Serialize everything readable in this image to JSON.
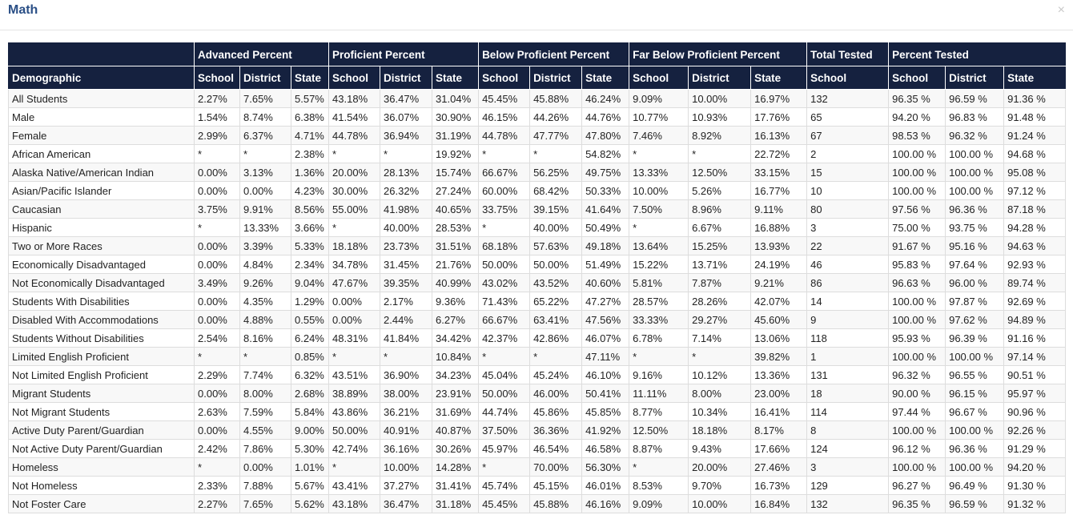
{
  "modal": {
    "title": "Math",
    "close_glyph": "×"
  },
  "table": {
    "group_headers": [
      "",
      "Advanced Percent",
      "Proficient Percent",
      "Below Proficient Percent",
      "Far Below Proficient Percent",
      "Total Tested",
      "Percent Tested"
    ],
    "columns": [
      "Demographic",
      "School",
      "District",
      "State",
      "School",
      "District",
      "State",
      "School",
      "District",
      "State",
      "School",
      "District",
      "State",
      "School",
      "School",
      "District",
      "State"
    ],
    "rows": [
      [
        "All Students",
        "2.27%",
        "7.65%",
        "5.57%",
        "43.18%",
        "36.47%",
        "31.04%",
        "45.45%",
        "45.88%",
        "46.24%",
        "9.09%",
        "10.00%",
        "16.97%",
        "132",
        "96.35 %",
        "96.59 %",
        "91.36 %"
      ],
      [
        "Male",
        "1.54%",
        "8.74%",
        "6.38%",
        "41.54%",
        "36.07%",
        "30.90%",
        "46.15%",
        "44.26%",
        "44.76%",
        "10.77%",
        "10.93%",
        "17.76%",
        "65",
        "94.20 %",
        "96.83 %",
        "91.48 %"
      ],
      [
        "Female",
        "2.99%",
        "6.37%",
        "4.71%",
        "44.78%",
        "36.94%",
        "31.19%",
        "44.78%",
        "47.77%",
        "47.80%",
        "7.46%",
        "8.92%",
        "16.13%",
        "67",
        "98.53 %",
        "96.32 %",
        "91.24 %"
      ],
      [
        "African American",
        "*",
        "*",
        "2.38%",
        "*",
        "*",
        "19.92%",
        "*",
        "*",
        "54.82%",
        "*",
        "*",
        "22.72%",
        "2",
        "100.00 %",
        "100.00 %",
        "94.68 %"
      ],
      [
        "Alaska Native/American Indian",
        "0.00%",
        "3.13%",
        "1.36%",
        "20.00%",
        "28.13%",
        "15.74%",
        "66.67%",
        "56.25%",
        "49.75%",
        "13.33%",
        "12.50%",
        "33.15%",
        "15",
        "100.00 %",
        "100.00 %",
        "95.08 %"
      ],
      [
        "Asian/Pacific Islander",
        "0.00%",
        "0.00%",
        "4.23%",
        "30.00%",
        "26.32%",
        "27.24%",
        "60.00%",
        "68.42%",
        "50.33%",
        "10.00%",
        "5.26%",
        "16.77%",
        "10",
        "100.00 %",
        "100.00 %",
        "97.12 %"
      ],
      [
        "Caucasian",
        "3.75%",
        "9.91%",
        "8.56%",
        "55.00%",
        "41.98%",
        "40.65%",
        "33.75%",
        "39.15%",
        "41.64%",
        "7.50%",
        "8.96%",
        "9.11%",
        "80",
        "97.56 %",
        "96.36 %",
        "87.18 %"
      ],
      [
        "Hispanic",
        "*",
        "13.33%",
        "3.66%",
        "*",
        "40.00%",
        "28.53%",
        "*",
        "40.00%",
        "50.49%",
        "*",
        "6.67%",
        "16.88%",
        "3",
        "75.00 %",
        "93.75 %",
        "94.28 %"
      ],
      [
        "Two or More Races",
        "0.00%",
        "3.39%",
        "5.33%",
        "18.18%",
        "23.73%",
        "31.51%",
        "68.18%",
        "57.63%",
        "49.18%",
        "13.64%",
        "15.25%",
        "13.93%",
        "22",
        "91.67 %",
        "95.16 %",
        "94.63 %"
      ],
      [
        "Economically Disadvantaged",
        "0.00%",
        "4.84%",
        "2.34%",
        "34.78%",
        "31.45%",
        "21.76%",
        "50.00%",
        "50.00%",
        "51.49%",
        "15.22%",
        "13.71%",
        "24.19%",
        "46",
        "95.83 %",
        "97.64 %",
        "92.93 %"
      ],
      [
        "Not Economically Disadvantaged",
        "3.49%",
        "9.26%",
        "9.04%",
        "47.67%",
        "39.35%",
        "40.99%",
        "43.02%",
        "43.52%",
        "40.60%",
        "5.81%",
        "7.87%",
        "9.21%",
        "86",
        "96.63 %",
        "96.00 %",
        "89.74 %"
      ],
      [
        "Students With Disabilities",
        "0.00%",
        "4.35%",
        "1.29%",
        "0.00%",
        "2.17%",
        "9.36%",
        "71.43%",
        "65.22%",
        "47.27%",
        "28.57%",
        "28.26%",
        "42.07%",
        "14",
        "100.00 %",
        "97.87 %",
        "92.69 %"
      ],
      [
        "Disabled With Accommodations",
        "0.00%",
        "4.88%",
        "0.55%",
        "0.00%",
        "2.44%",
        "6.27%",
        "66.67%",
        "63.41%",
        "47.56%",
        "33.33%",
        "29.27%",
        "45.60%",
        "9",
        "100.00 %",
        "97.62 %",
        "94.89 %"
      ],
      [
        "Students Without Disabilities",
        "2.54%",
        "8.16%",
        "6.24%",
        "48.31%",
        "41.84%",
        "34.42%",
        "42.37%",
        "42.86%",
        "46.07%",
        "6.78%",
        "7.14%",
        "13.06%",
        "118",
        "95.93 %",
        "96.39 %",
        "91.16 %"
      ],
      [
        "Limited English Proficient",
        "*",
        "*",
        "0.85%",
        "*",
        "*",
        "10.84%",
        "*",
        "*",
        "47.11%",
        "*",
        "*",
        "39.82%",
        "1",
        "100.00 %",
        "100.00 %",
        "97.14 %"
      ],
      [
        "Not Limited English Proficient",
        "2.29%",
        "7.74%",
        "6.32%",
        "43.51%",
        "36.90%",
        "34.23%",
        "45.04%",
        "45.24%",
        "46.10%",
        "9.16%",
        "10.12%",
        "13.36%",
        "131",
        "96.32 %",
        "96.55 %",
        "90.51 %"
      ],
      [
        "Migrant Students",
        "0.00%",
        "8.00%",
        "2.68%",
        "38.89%",
        "38.00%",
        "23.91%",
        "50.00%",
        "46.00%",
        "50.41%",
        "11.11%",
        "8.00%",
        "23.00%",
        "18",
        "90.00 %",
        "96.15 %",
        "95.97 %"
      ],
      [
        "Not Migrant Students",
        "2.63%",
        "7.59%",
        "5.84%",
        "43.86%",
        "36.21%",
        "31.69%",
        "44.74%",
        "45.86%",
        "45.85%",
        "8.77%",
        "10.34%",
        "16.41%",
        "114",
        "97.44 %",
        "96.67 %",
        "90.96 %"
      ],
      [
        "Active Duty Parent/Guardian",
        "0.00%",
        "4.55%",
        "9.00%",
        "50.00%",
        "40.91%",
        "40.87%",
        "37.50%",
        "36.36%",
        "41.92%",
        "12.50%",
        "18.18%",
        "8.17%",
        "8",
        "100.00 %",
        "100.00 %",
        "92.26 %"
      ],
      [
        "Not Active Duty Parent/Guardian",
        "2.42%",
        "7.86%",
        "5.30%",
        "42.74%",
        "36.16%",
        "30.26%",
        "45.97%",
        "46.54%",
        "46.58%",
        "8.87%",
        "9.43%",
        "17.66%",
        "124",
        "96.12 %",
        "96.36 %",
        "91.29 %"
      ],
      [
        "Homeless",
        "*",
        "0.00%",
        "1.01%",
        "*",
        "10.00%",
        "14.28%",
        "*",
        "70.00%",
        "56.30%",
        "*",
        "20.00%",
        "27.46%",
        "3",
        "100.00 %",
        "100.00 %",
        "94.20 %"
      ],
      [
        "Not Homeless",
        "2.33%",
        "7.88%",
        "5.67%",
        "43.41%",
        "37.27%",
        "31.41%",
        "45.74%",
        "45.15%",
        "46.01%",
        "8.53%",
        "9.70%",
        "16.73%",
        "129",
        "96.27 %",
        "96.49 %",
        "91.30 %"
      ],
      [
        "Not Foster Care",
        "2.27%",
        "7.65%",
        "5.62%",
        "43.18%",
        "36.47%",
        "31.18%",
        "45.45%",
        "45.88%",
        "46.16%",
        "9.09%",
        "10.00%",
        "16.84%",
        "132",
        "96.35 %",
        "96.59 %",
        "91.32 %"
      ]
    ]
  },
  "colors": {
    "header_bg": "#15213f",
    "title": "#2a4f86",
    "stripe": "#f8f8f8",
    "border": "#dddddd"
  }
}
